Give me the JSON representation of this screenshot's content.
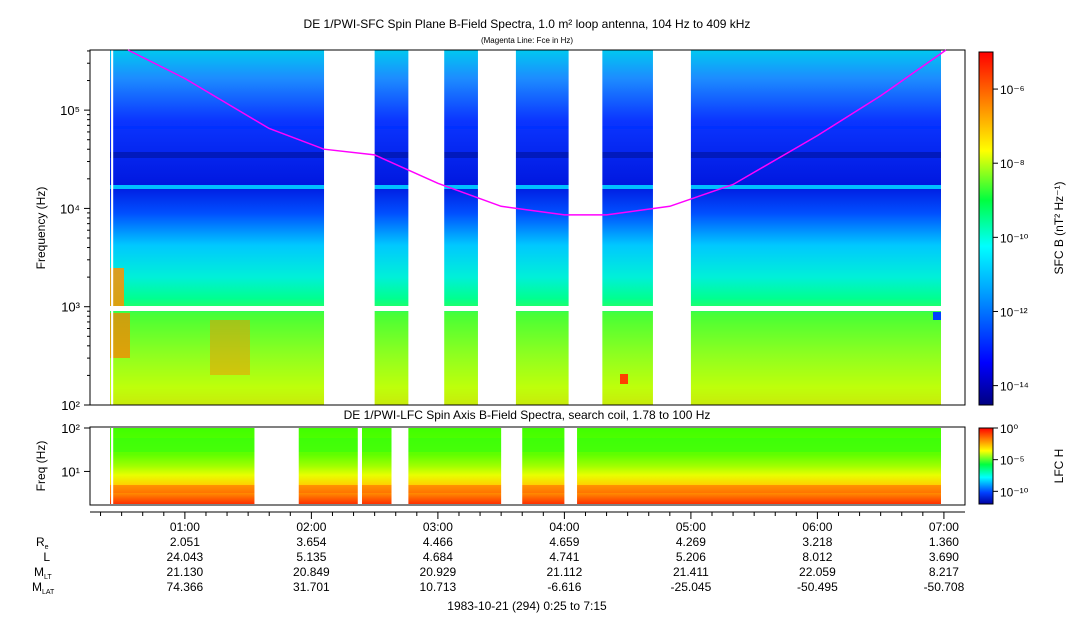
{
  "title": "DE 1/PWI-SFC  Spin Plane B-Field Spectra, 1.0 m² loop antenna, 104 Hz to 409 kHz",
  "subtitle": "(Magenta Line: Fce in Hz)",
  "date_label": "1983-10-21 (294) 0:25 to 7:15",
  "chart_data": [
    {
      "type": "heatmap",
      "title": "DE 1/PWI-SFC  Spin Plane B-Field Spectra, 1.0 m² loop antenna, 104 Hz to 409 kHz",
      "subtitle": "(Magenta Line: Fce in Hz)",
      "ylabel": "Frequency (Hz)",
      "yscale": "log",
      "ylim": [
        100,
        409000
      ],
      "ytick_labels": [
        "10²",
        "10³",
        "10⁴",
        "10⁵"
      ],
      "xlim_minutes": [
        15,
        430
      ],
      "x_start": "0:25",
      "x_end": "7:15",
      "data_gaps_minutes": [
        [
          25,
          26
        ],
        [
          126,
          150
        ],
        [
          166,
          183
        ],
        [
          199,
          217
        ],
        [
          242,
          258
        ],
        [
          282,
          300
        ],
        [
          421,
          430
        ]
      ],
      "colorbar": {
        "label": "SFC B (nT² Hz⁻¹)",
        "scale": "log",
        "range": [
          3e-15,
          1e-05
        ],
        "tick_labels": [
          "10⁻⁶",
          "10⁻⁸",
          "10⁻¹⁰",
          "10⁻¹²",
          "10⁻¹⁴"
        ]
      },
      "overlay": {
        "name": "Fce",
        "color": "#ff00ff",
        "minutes": [
          33,
          60,
          100,
          126,
          150,
          180,
          210,
          240,
          260,
          290,
          320,
          360,
          390,
          421
        ],
        "hz": [
          409000,
          210000,
          65000,
          40000,
          35000,
          18000,
          10500,
          8600,
          8600,
          10500,
          17500,
          55000,
          140000,
          409000
        ]
      }
    },
    {
      "type": "heatmap",
      "title": "DE 1/PWI-LFC  Spin Axis B-Field Spectra, search coil, 1.78 to 100 Hz",
      "ylabel": "Freq (Hz)",
      "yscale": "log",
      "ylim": [
        1.78,
        100
      ],
      "ytick_labels": [
        "10²",
        "10¹"
      ],
      "data_gaps_minutes": [
        [
          25,
          26
        ],
        [
          93,
          114
        ],
        [
          142,
          144
        ],
        [
          158,
          166
        ],
        [
          210,
          220
        ],
        [
          240,
          246
        ]
      ],
      "colorbar": {
        "label": "LFC H",
        "scale": "log",
        "range": [
          1e-12,
          1
        ],
        "tick_labels": [
          "10⁰",
          "10⁻⁵",
          "10⁻¹⁰"
        ]
      }
    }
  ],
  "x_axis": {
    "ticks": [
      "01:00",
      "02:00",
      "03:00",
      "04:00",
      "05:00",
      "06:00",
      "07:00"
    ],
    "tick_minutes": [
      60,
      120,
      180,
      240,
      300,
      360,
      420
    ]
  },
  "ephemeris": {
    "rows": [
      {
        "label": "R",
        "sub": "e",
        "values": [
          "2.051",
          "3.654",
          "4.466",
          "4.659",
          "4.269",
          "3.218",
          "1.360"
        ]
      },
      {
        "label": "L",
        "sub": "",
        "values": [
          "24.043",
          "5.135",
          "4.684",
          "4.741",
          "5.206",
          "8.012",
          "3.690"
        ]
      },
      {
        "label": "M",
        "sub": "LT",
        "values": [
          "21.130",
          "20.849",
          "20.929",
          "21.112",
          "21.411",
          "22.059",
          "8.217"
        ]
      },
      {
        "label": "M",
        "sub": "LAT",
        "values": [
          "74.366",
          "31.701",
          "10.713",
          "-6.616",
          "-25.045",
          "-50.495",
          "-50.708"
        ]
      }
    ]
  }
}
